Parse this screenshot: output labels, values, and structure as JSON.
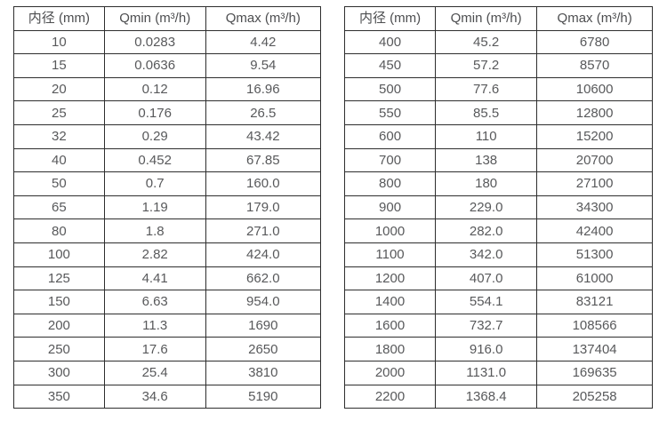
{
  "colors": {
    "background": "#ffffff",
    "border": "#2e2e2e",
    "text": "#58595b"
  },
  "tables": [
    {
      "name": "flow-spec-table-small-diameters",
      "headers": [
        "内径 (mm)",
        "Qmin (m³/h)",
        "Qmax (m³/h)"
      ],
      "rows": [
        [
          "10",
          "0.0283",
          "4.42"
        ],
        [
          "15",
          "0.0636",
          "9.54"
        ],
        [
          "20",
          "0.12",
          "16.96"
        ],
        [
          "25",
          "0.176",
          "26.5"
        ],
        [
          "32",
          "0.29",
          "43.42"
        ],
        [
          "40",
          "0.452",
          "67.85"
        ],
        [
          "50",
          "0.7",
          "160.0"
        ],
        [
          "65",
          "1.19",
          "179.0"
        ],
        [
          "80",
          "1.8",
          "271.0"
        ],
        [
          "100",
          "2.82",
          "424.0"
        ],
        [
          "125",
          "4.41",
          "662.0"
        ],
        [
          "150",
          "6.63",
          "954.0"
        ],
        [
          "200",
          "11.3",
          "1690"
        ],
        [
          "250",
          "17.6",
          "2650"
        ],
        [
          "300",
          "25.4",
          "3810"
        ],
        [
          "350",
          "34.6",
          "5190"
        ]
      ]
    },
    {
      "name": "flow-spec-table-large-diameters",
      "headers": [
        "内径 (mm)",
        "Qmin (m³/h)",
        "Qmax (m³/h)"
      ],
      "rows": [
        [
          "400",
          "45.2",
          "6780"
        ],
        [
          "450",
          "57.2",
          "8570"
        ],
        [
          "500",
          "77.6",
          "10600"
        ],
        [
          "550",
          "85.5",
          "12800"
        ],
        [
          "600",
          "110",
          "15200"
        ],
        [
          "700",
          "138",
          "20700"
        ],
        [
          "800",
          "180",
          "27100"
        ],
        [
          "900",
          "229.0",
          "34300"
        ],
        [
          "1000",
          "282.0",
          "42400"
        ],
        [
          "1100",
          "342.0",
          "51300"
        ],
        [
          "1200",
          "407.0",
          "61000"
        ],
        [
          "1400",
          "554.1",
          "83121"
        ],
        [
          "1600",
          "732.7",
          "108566"
        ],
        [
          "1800",
          "916.0",
          "137404"
        ],
        [
          "2000",
          "1131.0",
          "169635"
        ],
        [
          "2200",
          "1368.4",
          "205258"
        ]
      ]
    }
  ],
  "cell_column_names": [
    "diameter-cell",
    "qmin-cell",
    "qmax-cell"
  ],
  "column_widths_percent": [
    29.5,
    33.0,
    37.5
  ]
}
